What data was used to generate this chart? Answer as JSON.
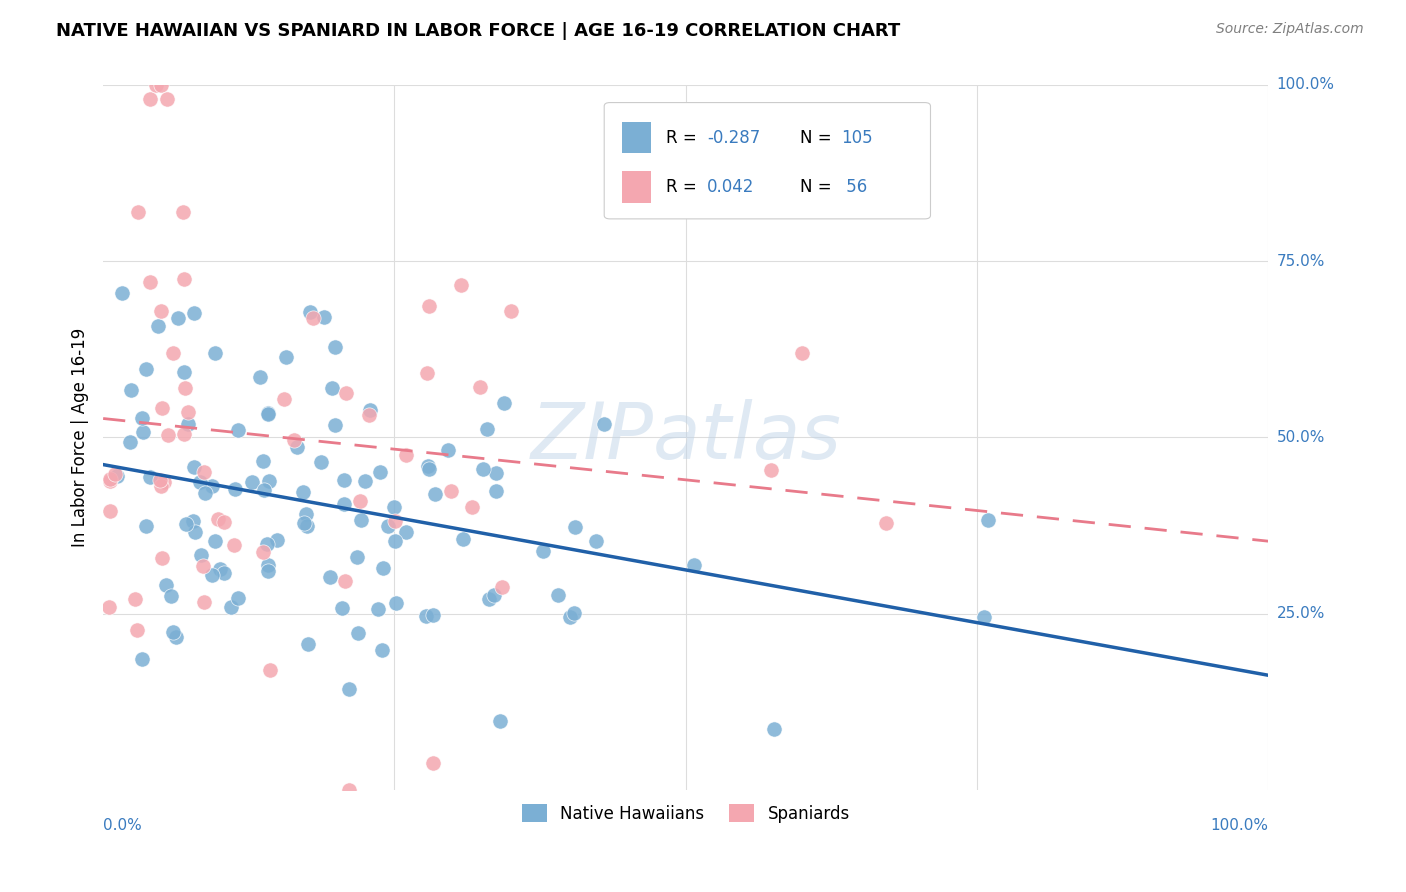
{
  "title": "NATIVE HAWAIIAN VS SPANIARD IN LABOR FORCE | AGE 16-19 CORRELATION CHART",
  "source": "Source: ZipAtlas.com",
  "ylabel": "In Labor Force | Age 16-19",
  "legend_label1": "Native Hawaiians",
  "legend_label2": "Spaniards",
  "R1": -0.287,
  "N1": 105,
  "R2": 0.042,
  "N2": 56,
  "color_blue": "#7bafd4",
  "color_pink": "#f4a7b0",
  "color_blue_text": "#3a7bbf",
  "color_blue_line": "#2060a8",
  "color_pink_line": "#e87a8a",
  "watermark": "ZIPatlas",
  "background_color": "#ffffff",
  "grid_color": "#dddddd"
}
